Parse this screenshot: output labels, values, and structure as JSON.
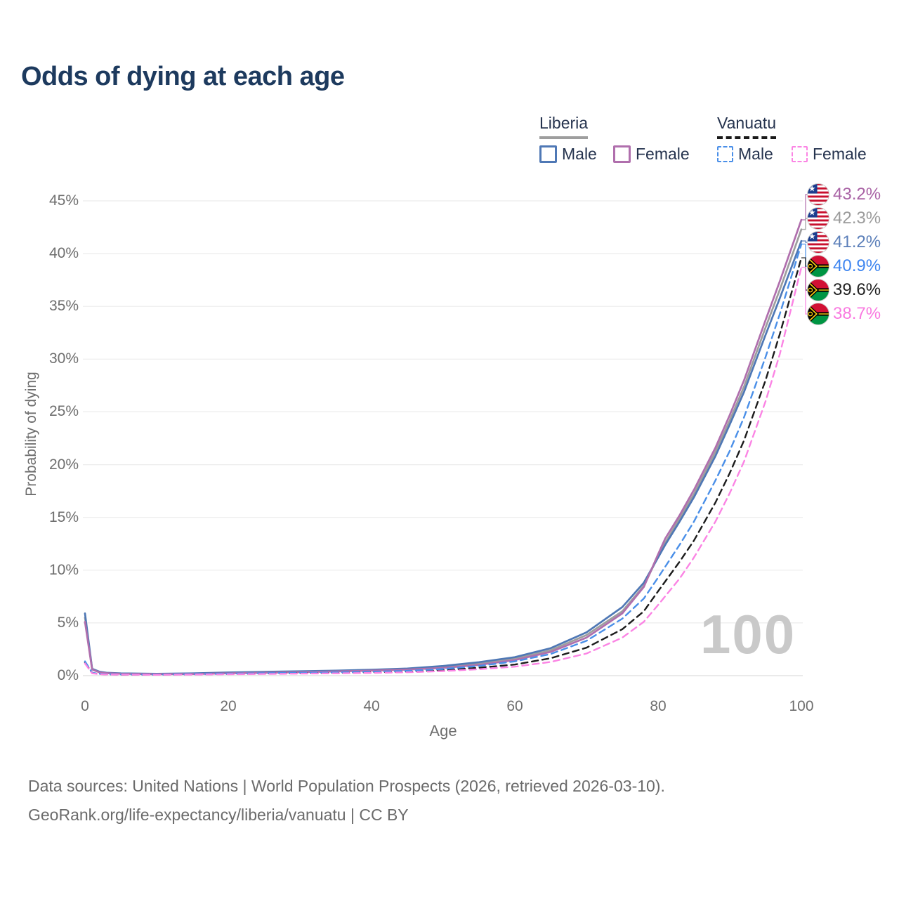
{
  "title": "Odds of dying at each age",
  "watermark": "100",
  "legend": {
    "groups": [
      {
        "label": "Liberia",
        "line_style": "solid",
        "underline_color": "#9e9e9e",
        "items": [
          {
            "label": "Male",
            "color": "#4f78b5"
          },
          {
            "label": "Female",
            "color": "#b06fad"
          }
        ]
      },
      {
        "label": "Vanuatu",
        "line_style": "dashed",
        "underline_color": "#1a1a1a",
        "items": [
          {
            "label": "Male",
            "color": "#4a8fe8"
          },
          {
            "label": "Female",
            "color": "#fb84e4"
          }
        ]
      }
    ]
  },
  "footer": {
    "line1": "Data sources: United Nations | World Population Prospects (2026, retrieved 2026-03-10).",
    "line2": "GeoRank.org/life-expectancy/liberia/vanuatu | CC BY"
  },
  "chart_data": {
    "type": "line",
    "title": "Odds of dying at each age",
    "xlabel": "Age",
    "ylabel": "Probability of dying",
    "xlim": [
      0,
      100
    ],
    "ylim": [
      0,
      45
    ],
    "x_tick_labels": [
      "0",
      "20",
      "40",
      "60",
      "80",
      "100"
    ],
    "y_tick_labels": [
      "0%",
      "5%",
      "10%",
      "15%",
      "20%",
      "25%",
      "30%",
      "35%",
      "40%",
      "45%"
    ],
    "y_gridlines": [
      0,
      5,
      10,
      15,
      20,
      25,
      30,
      35,
      40,
      45
    ],
    "grid": "horizontal-only",
    "legend_position": "top-right",
    "series": [
      {
        "name": "Liberia Female",
        "country": "Liberia",
        "sex": "female",
        "flag": "liberia",
        "color": "#b06fad",
        "label_color": "#a963a5",
        "dash": false,
        "end_label": "43.2%",
        "points": [
          [
            0,
            5.1
          ],
          [
            1,
            0.58
          ],
          [
            2,
            0.31
          ],
          [
            3,
            0.23
          ],
          [
            5,
            0.18
          ],
          [
            10,
            0.14
          ],
          [
            15,
            0.16
          ],
          [
            20,
            0.22
          ],
          [
            25,
            0.27
          ],
          [
            30,
            0.33
          ],
          [
            35,
            0.4
          ],
          [
            40,
            0.47
          ],
          [
            45,
            0.57
          ],
          [
            50,
            0.73
          ],
          [
            55,
            1.02
          ],
          [
            60,
            1.48
          ],
          [
            65,
            2.25
          ],
          [
            70,
            3.6
          ],
          [
            75,
            5.9
          ],
          [
            78,
            8.4
          ],
          [
            80,
            11.5
          ],
          [
            81,
            13.0
          ],
          [
            83,
            15.2
          ],
          [
            85,
            17.6
          ],
          [
            88,
            21.6
          ],
          [
            90,
            24.7
          ],
          [
            92,
            28.0
          ],
          [
            95,
            33.7
          ],
          [
            97,
            37.4
          ],
          [
            100,
            43.2
          ]
        ]
      },
      {
        "name": "Liberia (both sexes)",
        "country": "Liberia",
        "sex": "both",
        "flag": "liberia",
        "color": "#9e9e9e",
        "label_color": "#9b9b9b",
        "dash": false,
        "end_label": "42.3%",
        "points": [
          [
            0,
            5.5
          ],
          [
            1,
            0.62
          ],
          [
            2,
            0.34
          ],
          [
            3,
            0.25
          ],
          [
            5,
            0.2
          ],
          [
            10,
            0.16
          ],
          [
            15,
            0.19
          ],
          [
            20,
            0.26
          ],
          [
            25,
            0.31
          ],
          [
            30,
            0.37
          ],
          [
            35,
            0.44
          ],
          [
            40,
            0.51
          ],
          [
            45,
            0.62
          ],
          [
            50,
            0.82
          ],
          [
            55,
            1.14
          ],
          [
            60,
            1.6
          ],
          [
            65,
            2.4
          ],
          [
            70,
            3.85
          ],
          [
            75,
            6.1
          ],
          [
            78,
            8.5
          ],
          [
            80,
            11.3
          ],
          [
            81,
            12.6
          ],
          [
            83,
            14.9
          ],
          [
            85,
            17.2
          ],
          [
            88,
            21.2
          ],
          [
            90,
            24.2
          ],
          [
            92,
            27.4
          ],
          [
            95,
            33.0
          ],
          [
            97,
            36.6
          ],
          [
            100,
            42.3
          ]
        ]
      },
      {
        "name": "Liberia Male",
        "country": "Liberia",
        "sex": "male",
        "flag": "liberia",
        "color": "#4f78b5",
        "label_color": "#5b7fb9",
        "dash": false,
        "end_label": "41.2%",
        "points": [
          [
            0,
            5.9
          ],
          [
            1,
            0.65
          ],
          [
            2,
            0.38
          ],
          [
            3,
            0.28
          ],
          [
            5,
            0.22
          ],
          [
            10,
            0.18
          ],
          [
            15,
            0.22
          ],
          [
            20,
            0.3
          ],
          [
            25,
            0.36
          ],
          [
            30,
            0.42
          ],
          [
            35,
            0.48
          ],
          [
            40,
            0.56
          ],
          [
            45,
            0.68
          ],
          [
            50,
            0.92
          ],
          [
            55,
            1.28
          ],
          [
            60,
            1.75
          ],
          [
            65,
            2.6
          ],
          [
            70,
            4.1
          ],
          [
            75,
            6.5
          ],
          [
            78,
            8.8
          ],
          [
            80,
            11.2
          ],
          [
            81,
            12.4
          ],
          [
            83,
            14.6
          ],
          [
            85,
            16.9
          ],
          [
            88,
            20.8
          ],
          [
            90,
            23.8
          ],
          [
            92,
            26.9
          ],
          [
            95,
            32.3
          ],
          [
            97,
            35.8
          ],
          [
            100,
            41.2
          ]
        ]
      },
      {
        "name": "Vanuatu Male",
        "country": "Vanuatu",
        "sex": "male",
        "flag": "vanuatu",
        "color": "#4a8fe8",
        "label_color": "#3f86f0",
        "dash": true,
        "end_label": "40.9%",
        "points": [
          [
            0,
            1.35
          ],
          [
            1,
            0.28
          ],
          [
            2,
            0.18
          ],
          [
            3,
            0.14
          ],
          [
            5,
            0.11
          ],
          [
            10,
            0.1
          ],
          [
            15,
            0.14
          ],
          [
            20,
            0.19
          ],
          [
            25,
            0.23
          ],
          [
            30,
            0.27
          ],
          [
            35,
            0.31
          ],
          [
            40,
            0.37
          ],
          [
            45,
            0.46
          ],
          [
            50,
            0.63
          ],
          [
            55,
            0.92
          ],
          [
            60,
            1.35
          ],
          [
            65,
            2.05
          ],
          [
            70,
            3.3
          ],
          [
            75,
            5.4
          ],
          [
            78,
            7.3
          ],
          [
            80,
            9.3
          ],
          [
            83,
            12.4
          ],
          [
            85,
            14.6
          ],
          [
            88,
            18.5
          ],
          [
            90,
            21.3
          ],
          [
            92,
            24.5
          ],
          [
            95,
            30.2
          ],
          [
            97,
            34.3
          ],
          [
            100,
            40.9
          ]
        ]
      },
      {
        "name": "Vanuatu (both sexes)",
        "country": "Vanuatu",
        "sex": "both",
        "flag": "vanuatu",
        "color": "#1c1c1c",
        "label_color": "#222222",
        "dash": true,
        "end_label": "39.6%",
        "points": [
          [
            0,
            1.25
          ],
          [
            1,
            0.25
          ],
          [
            2,
            0.16
          ],
          [
            3,
            0.12
          ],
          [
            5,
            0.1
          ],
          [
            10,
            0.09
          ],
          [
            15,
            0.12
          ],
          [
            20,
            0.16
          ],
          [
            25,
            0.19
          ],
          [
            30,
            0.22
          ],
          [
            35,
            0.26
          ],
          [
            40,
            0.31
          ],
          [
            45,
            0.38
          ],
          [
            50,
            0.52
          ],
          [
            55,
            0.75
          ],
          [
            60,
            1.05
          ],
          [
            65,
            1.65
          ],
          [
            70,
            2.65
          ],
          [
            75,
            4.4
          ],
          [
            78,
            6.1
          ],
          [
            80,
            8.0
          ],
          [
            83,
            10.8
          ],
          [
            85,
            12.8
          ],
          [
            88,
            16.4
          ],
          [
            90,
            19.2
          ],
          [
            92,
            22.3
          ],
          [
            95,
            28.0
          ],
          [
            97,
            32.4
          ],
          [
            100,
            39.6
          ]
        ]
      },
      {
        "name": "Vanuatu Female",
        "country": "Vanuatu",
        "sex": "female",
        "flag": "vanuatu",
        "color": "#fb84e4",
        "label_color": "#f97ae0",
        "dash": true,
        "end_label": "38.7%",
        "points": [
          [
            0,
            1.15
          ],
          [
            1,
            0.22
          ],
          [
            2,
            0.14
          ],
          [
            3,
            0.11
          ],
          [
            5,
            0.09
          ],
          [
            10,
            0.08
          ],
          [
            15,
            0.1
          ],
          [
            20,
            0.13
          ],
          [
            25,
            0.16
          ],
          [
            30,
            0.19
          ],
          [
            35,
            0.22
          ],
          [
            40,
            0.26
          ],
          [
            45,
            0.32
          ],
          [
            50,
            0.43
          ],
          [
            55,
            0.61
          ],
          [
            60,
            0.85
          ],
          [
            65,
            1.3
          ],
          [
            70,
            2.1
          ],
          [
            75,
            3.6
          ],
          [
            78,
            5.1
          ],
          [
            80,
            6.7
          ],
          [
            83,
            9.2
          ],
          [
            85,
            11.2
          ],
          [
            88,
            14.6
          ],
          [
            90,
            17.3
          ],
          [
            92,
            20.3
          ],
          [
            95,
            26.0
          ],
          [
            97,
            30.5
          ],
          [
            100,
            38.7
          ]
        ]
      }
    ]
  }
}
